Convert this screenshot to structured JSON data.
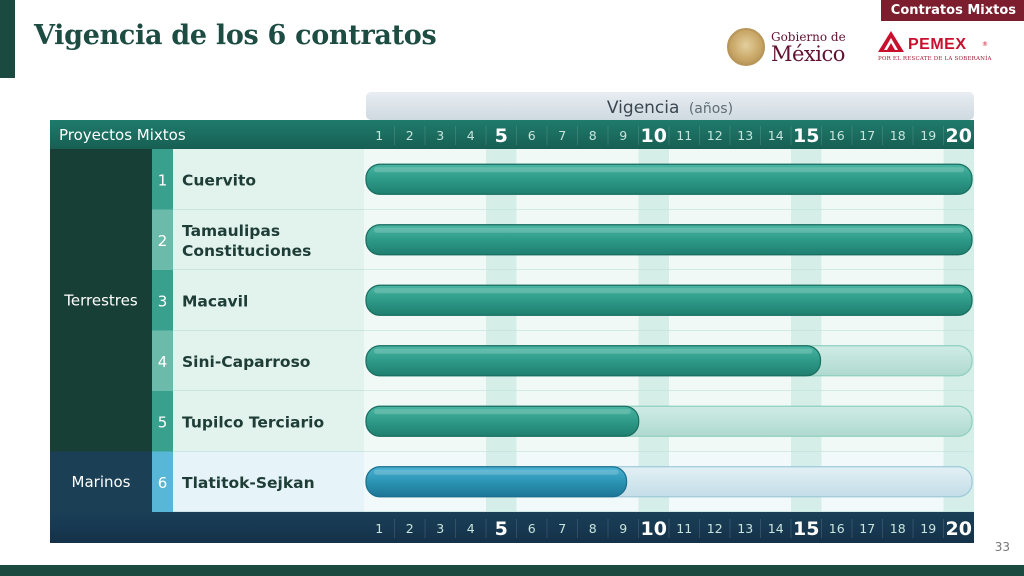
{
  "header": {
    "title": "Vigencia de los 6 contratos",
    "section_tag": "Contratos Mixtos",
    "slide_number": "33"
  },
  "logos": {
    "gobierno_line1": "Gobierno de",
    "gobierno_line2": "México",
    "pemex_word": "PEMEX",
    "pemex_registered": "®",
    "pemex_tagline": "POR EL RESCATE DE LA SOBERANÍA"
  },
  "colors": {
    "dark_green": "#1b4a40",
    "header_teal": "#196a5d",
    "bar_terrestre": "#2e9a88",
    "bar_marino": "#2b93b4",
    "track_terrestre": "#bfe4db",
    "track_marino": "#d3e7ee",
    "pemex_red": "#c8102e",
    "gob_guinda": "#611232"
  },
  "chart_data": {
    "type": "bar",
    "title": "Vigencia",
    "title_unit": "(años)",
    "column_header": "Proyectos Mixtos",
    "x_ticks": [
      "1",
      "2",
      "3",
      "4",
      "5",
      "6",
      "7",
      "8",
      "9",
      "10",
      "11",
      "12",
      "13",
      "14",
      "15",
      "16",
      "17",
      "18",
      "19",
      "20"
    ],
    "x_major_ticks": [
      "5",
      "10",
      "15",
      "20"
    ],
    "xlim": [
      0,
      20
    ],
    "groups": [
      {
        "name": "Terrestres",
        "rows": [
          1,
          2,
          3,
          4,
          5
        ]
      },
      {
        "name": "Marinos",
        "rows": [
          6
        ]
      }
    ],
    "rows": [
      {
        "num": "1",
        "lines": [
          "Cuervito"
        ],
        "years": 20,
        "group": "Terrestres"
      },
      {
        "num": "2",
        "lines": [
          "Tamaulipas",
          "Constituciones"
        ],
        "years": 20,
        "group": "Terrestres"
      },
      {
        "num": "3",
        "lines": [
          "Macavil"
        ],
        "years": 20,
        "group": "Terrestres"
      },
      {
        "num": "4",
        "lines": [
          "Sini-Caparroso"
        ],
        "years": 15,
        "group": "Terrestres"
      },
      {
        "num": "5",
        "lines": [
          "Tupilco Terciario"
        ],
        "years": 9,
        "group": "Terrestres"
      },
      {
        "num": "6",
        "lines": [
          "Tlatitok-Sejkan"
        ],
        "years": 8.6,
        "group": "Marinos"
      }
    ]
  }
}
